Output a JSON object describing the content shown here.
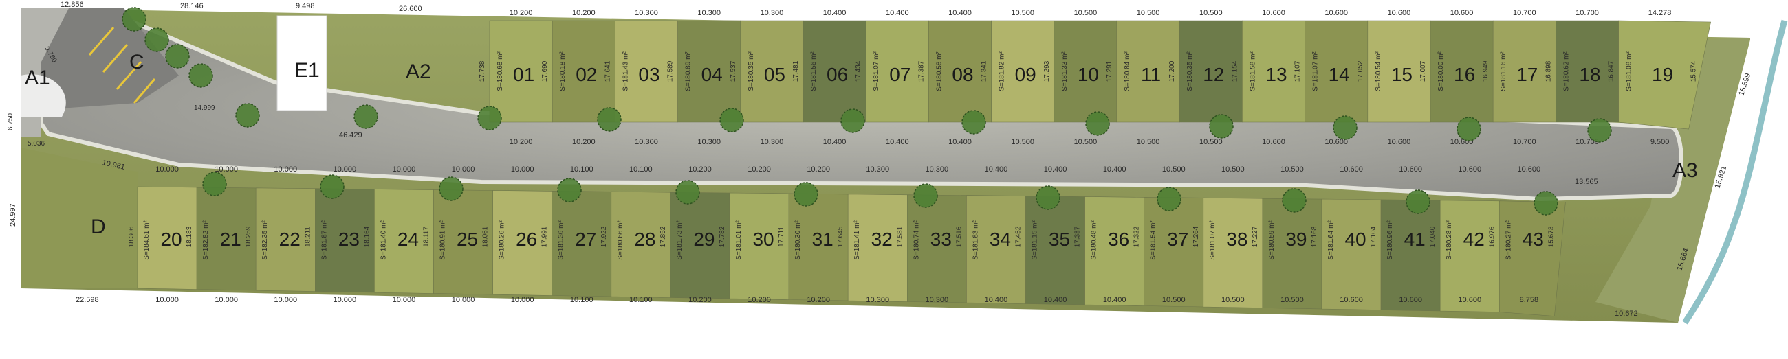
{
  "colors": {
    "page": "#ffffff",
    "grass": "#8f9a58",
    "grass_light": "#aab374",
    "road": "#8b8b8b",
    "road_edge": "#d8d8cf",
    "tree": "#4e7d33",
    "river": "#8ec1c6",
    "building": "#ffffff"
  },
  "zones": {
    "A1": {
      "label": "A1"
    },
    "A2": {
      "label": "A2"
    },
    "A3": {
      "label": "A3"
    },
    "C": {
      "label": "C"
    },
    "D": {
      "label": "D"
    },
    "E1": {
      "label": "E1"
    }
  },
  "top_lots": [
    {
      "num": "01",
      "area": "S=180.68 m²",
      "front": "10.200",
      "back": "10.200",
      "left_side": "17.738",
      "right_side": "17.690"
    },
    {
      "num": "02",
      "area": "S=180.18 m²",
      "front": "10.200",
      "back": "10.200",
      "right_side": "17.641"
    },
    {
      "num": "03",
      "area": "S=181.43 m²",
      "front": "10.300",
      "back": "10.300",
      "right_side": "17.589"
    },
    {
      "num": "04",
      "area": "S=180.89 m²",
      "front": "10.300",
      "back": "10.300",
      "right_side": "17.537"
    },
    {
      "num": "05",
      "area": "S=180.35 m²",
      "front": "10.300",
      "back": "10.300",
      "right_side": "17.481"
    },
    {
      "num": "06",
      "area": "S=181.56 m²",
      "front": "10.400",
      "back": "10.400",
      "right_side": "17.434"
    },
    {
      "num": "07",
      "area": "S=181.07 m²",
      "front": "10.400",
      "back": "10.400",
      "right_side": "17.387"
    },
    {
      "num": "08",
      "area": "S=180.58 m²",
      "front": "10.400",
      "back": "10.400",
      "right_side": "17.341"
    },
    {
      "num": "09",
      "area": "S=181.82 m²",
      "front": "10.500",
      "back": "10.500",
      "right_side": "17.293"
    },
    {
      "num": "10",
      "area": "S=181.33 m²",
      "front": "10.500",
      "back": "10.500",
      "right_side": "17.291"
    },
    {
      "num": "11",
      "area": "S=180.84 m²",
      "front": "10.500",
      "back": "10.500",
      "right_side": "17.200"
    },
    {
      "num": "12",
      "area": "S=180.35 m²",
      "front": "10.500",
      "back": "10.500",
      "right_side": "17.154"
    },
    {
      "num": "13",
      "area": "S=181.58 m²",
      "front": "10.600",
      "back": "10.600",
      "right_side": "17.107"
    },
    {
      "num": "14",
      "area": "S=181.07 m²",
      "front": "10.600",
      "back": "10.600",
      "right_side": "17.052"
    },
    {
      "num": "15",
      "area": "S=180.54 m²",
      "front": "10.600",
      "back": "10.600",
      "right_side": "17.007"
    },
    {
      "num": "16",
      "area": "S=180.00 m²",
      "front": "10.600",
      "back": "10.600",
      "right_side": "16.949"
    },
    {
      "num": "17",
      "area": "S=181.16 m²",
      "front": "10.700",
      "back": "10.700",
      "right_side": "16.898"
    },
    {
      "num": "18",
      "area": "S=180.62 m²",
      "front": "10.700",
      "back": "10.700",
      "right_side": "16.847"
    },
    {
      "num": "19",
      "area": "S=181.08 m²",
      "front": "14.278",
      "back": "9.500",
      "right_side": "15.574"
    }
  ],
  "bottom_lots": [
    {
      "num": "20",
      "area": "S=184.61 m²",
      "front": "10.000",
      "back": "10.000",
      "left_side": "18.306",
      "right_side": "18.183"
    },
    {
      "num": "21",
      "area": "S=182.82 m²",
      "front": "10.000",
      "back": "10.000",
      "right_side": "18.259"
    },
    {
      "num": "22",
      "area": "S=182.35 m²",
      "front": "10.000",
      "back": "10.000",
      "right_side": "18.211"
    },
    {
      "num": "23",
      "area": "S=181.87 m²",
      "front": "10.000",
      "back": "10.000",
      "right_side": "18.164"
    },
    {
      "num": "24",
      "area": "S=181.40 m²",
      "front": "10.000",
      "back": "10.000",
      "right_side": "18.117"
    },
    {
      "num": "25",
      "area": "S=180.91 m²",
      "front": "10.000",
      "back": "10.000",
      "right_side": "18.061"
    },
    {
      "num": "26",
      "area": "S=180.26 m²",
      "front": "10.000",
      "back": "10.000",
      "right_side": "17.991"
    },
    {
      "num": "27",
      "area": "S=181.36 m²",
      "front": "10.100",
      "back": "10.100",
      "right_side": "17.922"
    },
    {
      "num": "28",
      "area": "S=180.66 m²",
      "front": "10.100",
      "back": "10.100",
      "right_side": "17.852"
    },
    {
      "num": "29",
      "area": "S=181.73 m²",
      "front": "10.200",
      "back": "10.200",
      "right_side": "17.782"
    },
    {
      "num": "30",
      "area": "S=181.01 m²",
      "front": "10.200",
      "back": "10.200",
      "right_side": "17.711"
    },
    {
      "num": "31",
      "area": "S=180.30 m²",
      "front": "10.200",
      "back": "10.200",
      "right_side": "17.645"
    },
    {
      "num": "32",
      "area": "S=181.41 m²",
      "front": "10.300",
      "back": "10.300",
      "right_side": "17.581"
    },
    {
      "num": "33",
      "area": "S=180.74 m²",
      "front": "10.300",
      "back": "10.300",
      "right_side": "17.516"
    },
    {
      "num": "34",
      "area": "S=181.83 m²",
      "front": "10.400",
      "back": "10.400",
      "right_side": "17.452"
    },
    {
      "num": "35",
      "area": "S=181.15 m²",
      "front": "10.400",
      "back": "10.400",
      "right_side": "17.387"
    },
    {
      "num": "36",
      "area": "S=180.48 m²",
      "front": "10.400",
      "back": "10.400",
      "right_side": "17.322"
    },
    {
      "num": "37",
      "area": "S=181.54 m²",
      "front": "10.500",
      "back": "10.500",
      "right_side": "17.264"
    },
    {
      "num": "38",
      "area": "S=181.07 m²",
      "front": "10.500",
      "back": "10.500",
      "right_side": "17.227"
    },
    {
      "num": "39",
      "area": "S=180.59 m²",
      "front": "10.500",
      "back": "10.500",
      "right_side": "17.168"
    },
    {
      "num": "40",
      "area": "S=181.64 m²",
      "front": "10.600",
      "back": "10.600",
      "right_side": "17.104"
    },
    {
      "num": "41",
      "area": "S=180.96 m²",
      "front": "10.600",
      "back": "10.600",
      "right_side": "17.040"
    },
    {
      "num": "42",
      "area": "S=180.28 m²",
      "front": "10.600",
      "back": "10.600",
      "right_side": "16.976"
    },
    {
      "num": "43",
      "area": "S=180.27 m²",
      "front": "10.600",
      "back": "8.758",
      "right_side": "15.673"
    }
  ],
  "dimensions": {
    "top_a1": "12.856",
    "top_c": "28.146",
    "top_e1": "9.498",
    "top_a2": "26.600",
    "c_diag": "9.760",
    "c_inner": "14.999",
    "a2_bottom": "46.429",
    "a1_left": "6.750",
    "a1_bottom": "5.036",
    "d_top": "10.981",
    "d_left": "24.997",
    "d_bottom": "22.598",
    "road_end": "13.565",
    "lot43_extra": "10.672",
    "a3_right_1": "15.599",
    "a3_right_2": "15.821",
    "a3_right_3": "15.664"
  }
}
